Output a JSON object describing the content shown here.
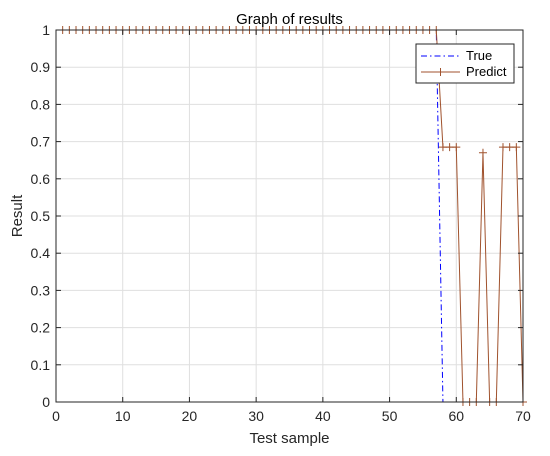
{
  "chart_data": {
    "type": "line",
    "title": "Graph of results",
    "xlabel": "Test sample",
    "ylabel": "Result",
    "xlim": [
      0,
      70
    ],
    "ylim": [
      0,
      1
    ],
    "x_ticks": [
      "0",
      "10",
      "20",
      "30",
      "40",
      "50",
      "60",
      "70"
    ],
    "y_ticks": [
      "0",
      "0.1",
      "0.2",
      "0.3",
      "0.4",
      "0.5",
      "0.6",
      "0.7",
      "0.8",
      "0.9",
      "1"
    ],
    "grid": true,
    "legend_position": "top-right",
    "series": [
      {
        "name": "True",
        "style": "dash-dot",
        "color": "#0000ff",
        "x": [
          1,
          57,
          58,
          70
        ],
        "y": [
          1,
          1,
          0,
          0
        ]
      },
      {
        "name": "Predict",
        "style": "solid-plus",
        "color": "#a0522d",
        "x": [
          1,
          2,
          3,
          4,
          5,
          6,
          7,
          8,
          9,
          10,
          11,
          12,
          13,
          14,
          15,
          16,
          17,
          18,
          19,
          20,
          21,
          22,
          23,
          24,
          25,
          26,
          27,
          28,
          29,
          30,
          31,
          32,
          33,
          34,
          35,
          36,
          37,
          38,
          39,
          40,
          41,
          42,
          43,
          44,
          45,
          46,
          47,
          48,
          49,
          50,
          51,
          52,
          53,
          54,
          55,
          56,
          57,
          58,
          59,
          60,
          61,
          62,
          63,
          64,
          65,
          66,
          67,
          68,
          69,
          70
        ],
        "y": [
          1,
          1,
          1,
          1,
          1,
          1,
          1,
          1,
          1,
          1,
          1,
          1,
          1,
          1,
          1,
          1,
          1,
          1,
          1,
          1,
          1,
          1,
          1,
          1,
          1,
          1,
          1,
          1,
          1,
          1,
          1,
          1,
          1,
          1,
          1,
          1,
          1,
          1,
          1,
          1,
          1,
          1,
          1,
          1,
          1,
          1,
          1,
          1,
          1,
          1,
          1,
          1,
          1,
          1,
          1,
          1,
          1,
          0.685,
          0.685,
          0.685,
          0,
          0,
          0,
          0.67,
          0,
          0,
          0.685,
          0.685,
          0.685,
          0
        ]
      }
    ]
  }
}
